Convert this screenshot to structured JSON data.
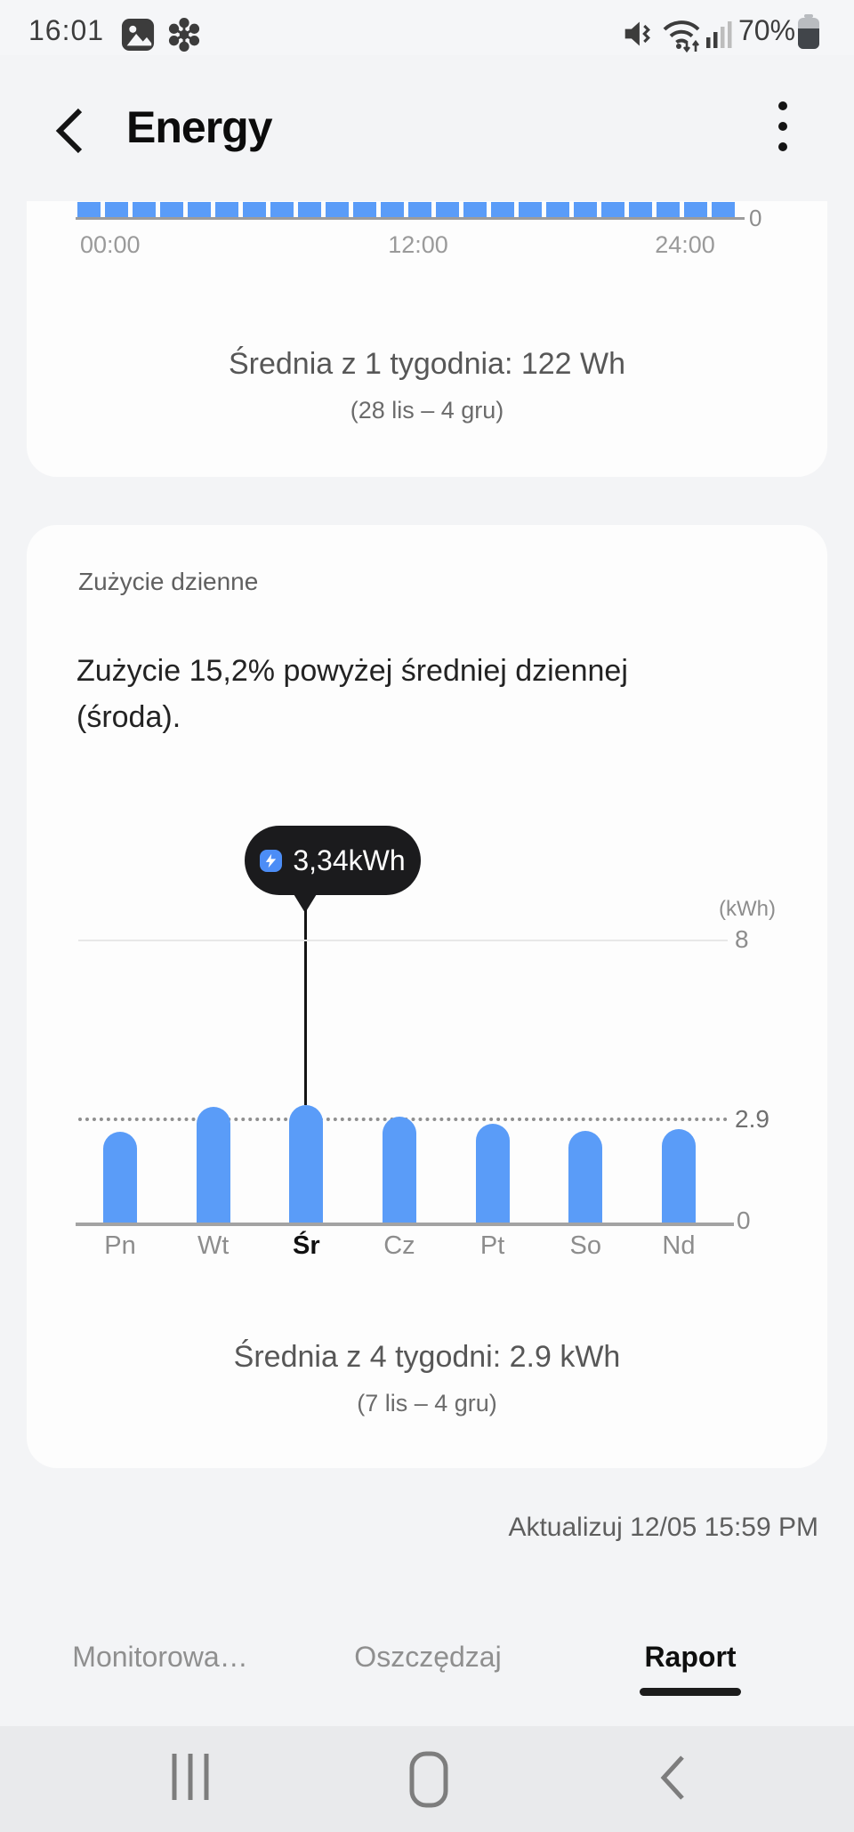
{
  "colors": {
    "bar_blue": "#5a9cf8",
    "tooltip_bg": "#1b1b1d",
    "tooltip_icon_bg": "#4c8df6",
    "active_tab_underline": "#1c1c1c"
  },
  "status_bar": {
    "time": "16:01",
    "battery": "70%"
  },
  "header": {
    "title": "Energy"
  },
  "hourly_card": {
    "y_zero_label": "0",
    "x_ticks": [
      "00:00",
      "12:00",
      "24:00"
    ],
    "average_label": "Średnia z 1 tygodnia: 122 Wh",
    "date_range": "(28 lis – 4 gru)"
  },
  "daily_card": {
    "section_title": "Zużycie dzienne",
    "headline_line1": "Zużycie 15,2% powyżej średniej dziennej",
    "headline_line2": "(środa).",
    "tooltip_value": "3,34kWh",
    "unit_label": "(kWh)",
    "ytick_top": "8",
    "ytick_avg": "2.9",
    "ytick_zero": "0",
    "average_label": "Średnia z 4 tygodni: 2.9 kWh",
    "date_range": "(7 lis – 4 gru)"
  },
  "footer": {
    "update_label": "Aktualizuj 12/05 15:59 PM"
  },
  "tabs": [
    {
      "label": "Monitorowa…",
      "active": false
    },
    {
      "label": "Oszczędzaj",
      "active": false
    },
    {
      "label": "Raport",
      "active": true
    }
  ],
  "icons": {
    "status_left": [
      "gallery-icon",
      "smartthings-icon"
    ],
    "status_right": [
      "vibrate-icon",
      "wifi-icon",
      "signal-icon",
      "battery-icon"
    ],
    "header": [
      "back-icon",
      "more-options-icon"
    ],
    "tooltip": [
      "energy-bolt-icon"
    ],
    "nav": [
      "recents-icon",
      "home-icon",
      "back-icon"
    ]
  },
  "chart_data": [
    {
      "type": "bar",
      "description": "hourly energy use, one uniform bar per hour of day",
      "bar_count": 24,
      "x_ticks": [
        "00:00",
        "12:00",
        "24:00"
      ],
      "values": [
        122,
        122,
        122,
        122,
        122,
        122,
        122,
        122,
        122,
        122,
        122,
        122,
        122,
        122,
        122,
        122,
        122,
        122,
        122,
        122,
        122,
        122,
        122,
        122
      ],
      "units": "Wh",
      "yticks": [
        "0"
      ],
      "average": 122,
      "average_label": "Średnia z 1 tygodnia: 122 Wh",
      "date_range": "(28 lis – 4 gru)"
    },
    {
      "type": "bar",
      "description": "daily energy use per weekday",
      "categories": [
        "Pn",
        "Wt",
        "Śr",
        "Cz",
        "Pt",
        "So",
        "Nd"
      ],
      "values": [
        2.57,
        3.28,
        3.34,
        3.0,
        2.82,
        2.62,
        2.67
      ],
      "units": "kWh",
      "highlight_index": 2,
      "highlight_label": "3,34kWh",
      "average_line": 2.9,
      "ylabel": "(kWh)",
      "yticks": [
        0,
        2.9,
        8
      ],
      "ylim": [
        0,
        8.8
      ],
      "average_label": "Średnia z 4 tygodni: 2.9 kWh",
      "date_range": "(7 lis – 4 gru)"
    }
  ]
}
